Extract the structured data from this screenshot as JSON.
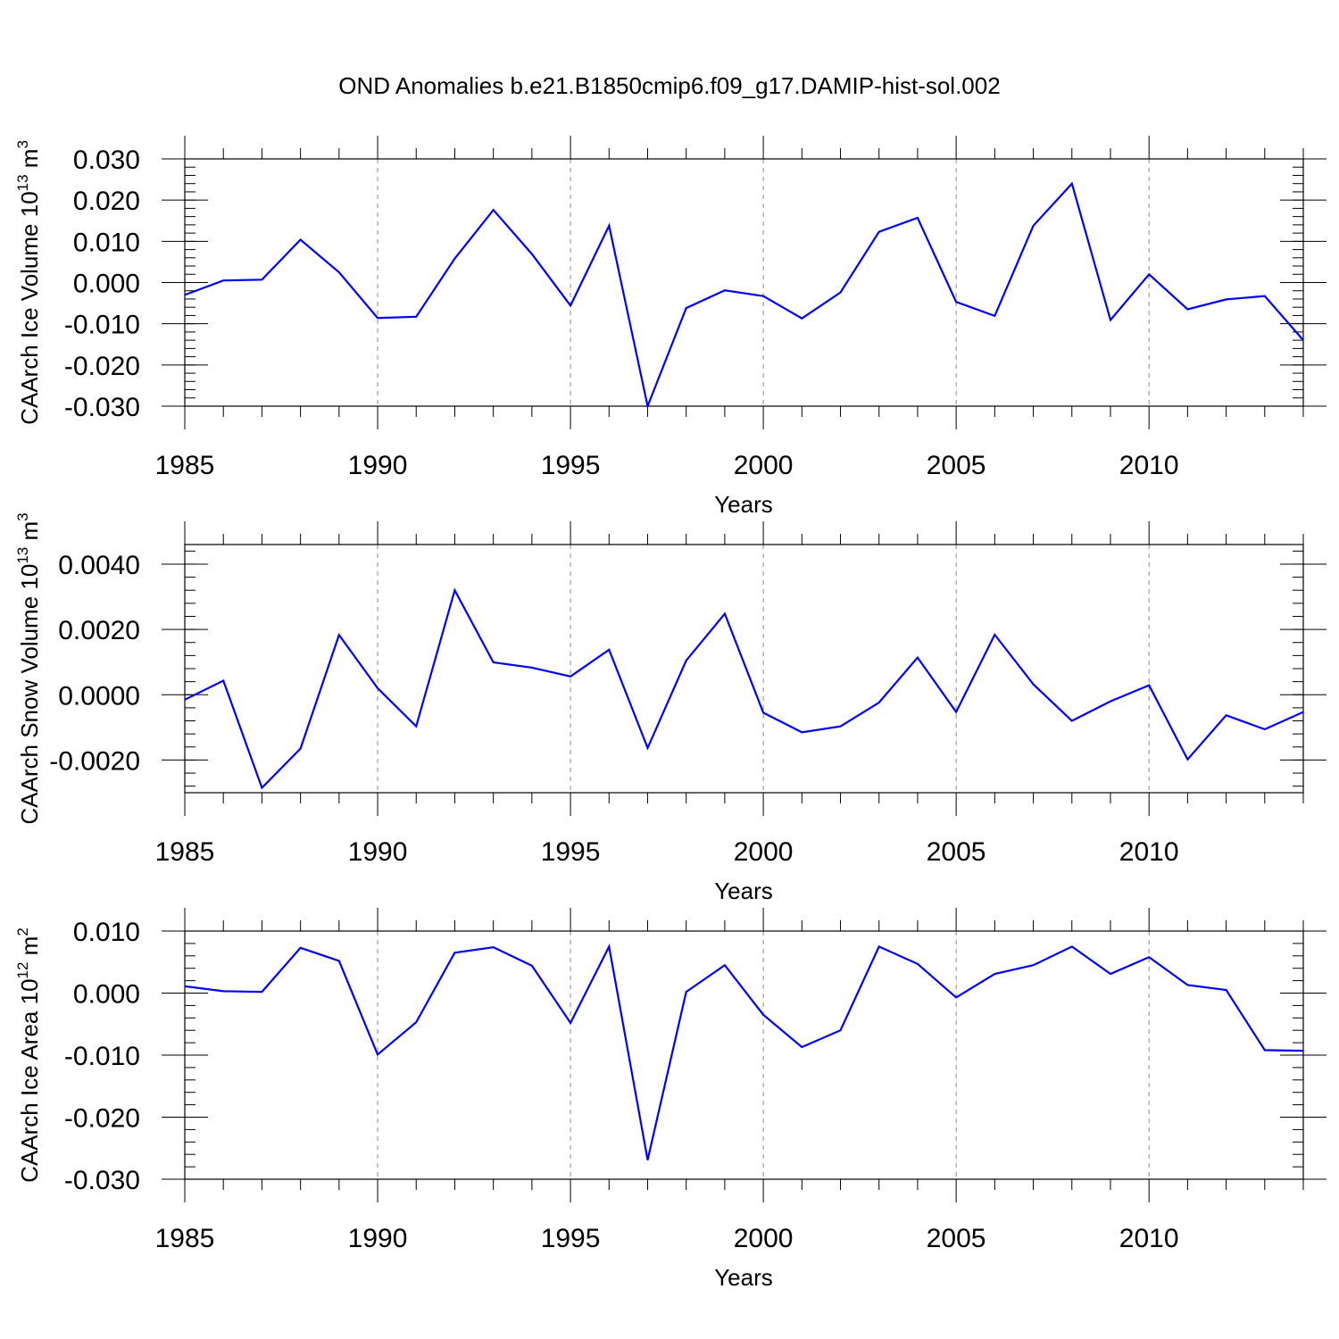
{
  "title": "OND Anomalies b.e21.B1850cmip6.f09_g17.DAMIP-hist-sol.002",
  "colors": {
    "series": "#0000ff",
    "axes": "#000000",
    "grid": "#888888"
  },
  "chart_data": [
    {
      "type": "line",
      "name": "ice-volume",
      "xlabel": "Years",
      "ylabel_prefix": "CAArch Ice Volume 10",
      "ylabel_exponent": "13",
      "ylabel_unit": " m",
      "ylabel_unit_power": "3",
      "xlim": [
        1985,
        2014
      ],
      "ylim": [
        -0.03,
        0.03
      ],
      "x_ticks": [
        "1985",
        "1990",
        "1995",
        "2000",
        "2005",
        "2010"
      ],
      "y_ticks": [
        "0.030",
        "0.020",
        "0.010",
        "0.000",
        "-0.010",
        "-0.020",
        "-0.030"
      ],
      "y_tick_values": [
        0.03,
        0.02,
        0.01,
        0.0,
        -0.01,
        -0.02,
        -0.03
      ],
      "y_minor_step": 0.002,
      "grid_years": [
        1990,
        1995,
        2000,
        2005,
        2010
      ],
      "x": [
        1985,
        1986,
        1987,
        1988,
        1989,
        1990,
        1991,
        1992,
        1993,
        1994,
        1995,
        1996,
        1997,
        1998,
        1999,
        2000,
        2001,
        2002,
        2003,
        2004,
        2005,
        2006,
        2007,
        2008,
        2009,
        2010,
        2011,
        2012,
        2013,
        2014
      ],
      "values": [
        -0.003,
        0.0005,
        0.0007,
        0.0104,
        0.0025,
        -0.0086,
        -0.0083,
        0.0058,
        0.0176,
        0.0069,
        -0.0056,
        0.0138,
        -0.03,
        -0.0062,
        -0.0019,
        -0.0033,
        -0.0087,
        -0.0024,
        0.0123,
        0.0157,
        -0.0047,
        -0.0081,
        0.0138,
        0.024,
        -0.0091,
        0.002,
        -0.0065,
        -0.0041,
        -0.0033,
        -0.014
      ]
    },
    {
      "type": "line",
      "name": "snow-volume",
      "xlabel": "Years",
      "ylabel_prefix": "CAArch Snow Volume 10",
      "ylabel_exponent": "13",
      "ylabel_unit": " m",
      "ylabel_unit_power": "3",
      "xlim": [
        1985,
        2014
      ],
      "ylim": [
        -0.003,
        0.0046
      ],
      "x_ticks": [
        "1985",
        "1990",
        "1995",
        "2000",
        "2005",
        "2010"
      ],
      "y_ticks": [
        "0.0040",
        "0.0020",
        "0.0000",
        "-0.0020"
      ],
      "y_tick_values": [
        0.004,
        0.002,
        0.0,
        -0.002
      ],
      "y_minor_step": 0.0004,
      "grid_years": [
        1990,
        1995,
        2000,
        2005,
        2010
      ],
      "x": [
        1985,
        1986,
        1987,
        1988,
        1989,
        1990,
        1991,
        1992,
        1993,
        1994,
        1995,
        1996,
        1997,
        1998,
        1999,
        2000,
        2001,
        2002,
        2003,
        2004,
        2005,
        2006,
        2007,
        2008,
        2009,
        2010,
        2011,
        2012,
        2013,
        2014
      ],
      "values": [
        -0.00015,
        0.00043,
        -0.00285,
        -0.00165,
        0.00183,
        0.0002,
        -0.00097,
        0.0032,
        0.00099,
        0.00083,
        0.00056,
        0.00138,
        -0.00163,
        0.00105,
        0.00248,
        -0.00055,
        -0.00115,
        -0.00097,
        -0.00024,
        0.00114,
        -0.00053,
        0.00184,
        0.00032,
        -0.0008,
        -0.0002,
        0.00029,
        -0.00198,
        -0.00063,
        -0.00106,
        -0.00053
      ]
    },
    {
      "type": "line",
      "name": "ice-area",
      "xlabel": "Years",
      "ylabel_prefix": "CAArch Ice Area 10",
      "ylabel_exponent": "12",
      "ylabel_unit": " m",
      "ylabel_unit_power": "2",
      "xlim": [
        1985,
        2014
      ],
      "ylim": [
        -0.03,
        0.01
      ],
      "x_ticks": [
        "1985",
        "1990",
        "1995",
        "2000",
        "2005",
        "2010"
      ],
      "y_ticks": [
        "0.010",
        "0.000",
        "-0.010",
        "-0.020",
        "-0.030"
      ],
      "y_tick_values": [
        0.01,
        0.0,
        -0.01,
        -0.02,
        -0.03
      ],
      "y_minor_step": 0.002,
      "grid_years": [
        1990,
        1995,
        2000,
        2005,
        2010
      ],
      "x": [
        1985,
        1986,
        1987,
        1988,
        1989,
        1990,
        1991,
        1992,
        1993,
        1994,
        1995,
        1996,
        1997,
        1998,
        1999,
        2000,
        2001,
        2002,
        2003,
        2004,
        2005,
        2006,
        2007,
        2008,
        2009,
        2010,
        2011,
        2012,
        2013,
        2014
      ],
      "values": [
        0.0011,
        0.0003,
        0.0002,
        0.0073,
        0.0052,
        -0.0099,
        -0.0047,
        0.0065,
        0.0074,
        0.0044,
        -0.0048,
        0.0075,
        -0.0269,
        0.0002,
        0.0045,
        -0.0035,
        -0.0087,
        -0.006,
        0.0075,
        0.0047,
        -0.0007,
        0.0031,
        0.0045,
        0.0075,
        0.0031,
        0.0058,
        0.0013,
        0.0005,
        -0.0092,
        -0.0093
      ]
    }
  ]
}
